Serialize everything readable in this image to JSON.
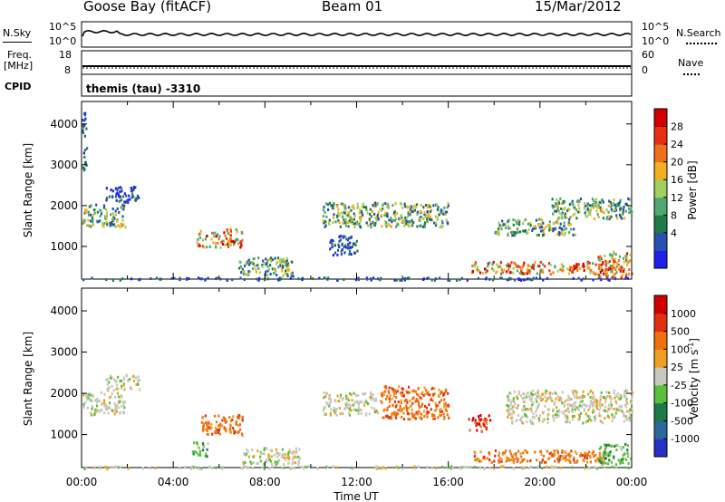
{
  "header": {
    "station": "Goose Bay (fitACF)",
    "beam": "Beam 01",
    "date": "15/Mar/2012"
  },
  "strips": {
    "nsky_label": "N.Sky",
    "nsearch_label": "N.Search",
    "nsky_ticks": [
      "10^5",
      "10^0"
    ],
    "nsearch_ticks": [
      "10^5",
      "10^0"
    ],
    "freq_label_1": "Freq.",
    "freq_label_2": "[MHz]",
    "freq_ticks": [
      "18",
      "8"
    ],
    "nave_label": "Nave",
    "nave_ticks": [
      "60",
      "0"
    ],
    "cpid_label": "CPID",
    "cpid_value": "themis (tau) -3310"
  },
  "chart_data": [
    {
      "type": "heatmap",
      "name": "power_panel",
      "ylabel": "Slant Range [km]",
      "ylim": [
        200,
        4550
      ],
      "xlim": [
        0,
        24
      ],
      "y_ticks": [
        "4000",
        "3000",
        "2000",
        "1000"
      ],
      "colorbar": {
        "label": "Power [dB]",
        "ticks": [
          "28",
          "24",
          "20",
          "16",
          "12",
          "8",
          "4"
        ],
        "colors": [
          "#2020e8",
          "#2850b0",
          "#1f7a4a",
          "#4ea870",
          "#9fd060",
          "#f0b020",
          "#f07018",
          "#e83010",
          "#d00000"
        ]
      },
      "regions": [
        {
          "t0": 0.0,
          "t1": 1.9,
          "r0": 1500,
          "r1": 2050,
          "level": "mid"
        },
        {
          "t0": 1.0,
          "t1": 2.5,
          "r0": 2100,
          "r1": 2500,
          "level": "low"
        },
        {
          "t0": 0.0,
          "t1": 0.2,
          "r0": 2900,
          "r1": 4300,
          "level": "low"
        },
        {
          "t0": 5.0,
          "t1": 7.0,
          "r0": 1000,
          "r1": 1450,
          "level": "high"
        },
        {
          "t0": 6.8,
          "t1": 9.2,
          "r0": 300,
          "r1": 750,
          "level": "mid"
        },
        {
          "t0": 10.5,
          "t1": 16.0,
          "r0": 1500,
          "r1": 2100,
          "level": "mid"
        },
        {
          "t0": 10.8,
          "t1": 12.0,
          "r0": 800,
          "r1": 1300,
          "level": "low"
        },
        {
          "t0": 17.0,
          "t1": 23.5,
          "r0": 350,
          "r1": 650,
          "level": "high"
        },
        {
          "t0": 18.0,
          "t1": 21.5,
          "r0": 1300,
          "r1": 1700,
          "level": "mid"
        },
        {
          "t0": 20.5,
          "t1": 24.0,
          "r0": 1700,
          "r1": 2200,
          "level": "mid"
        },
        {
          "t0": 22.5,
          "t1": 24.0,
          "r0": 250,
          "r1": 900,
          "level": "high"
        },
        {
          "t0": 0.0,
          "t1": 24.0,
          "r0": 200,
          "r1": 260,
          "level": "low"
        }
      ]
    },
    {
      "type": "heatmap",
      "name": "velocity_panel",
      "ylabel": "Slant Range [km]",
      "xlabel": "Time UT",
      "ylim": [
        200,
        4550
      ],
      "xlim": [
        0,
        24
      ],
      "y_ticks": [
        "4000",
        "3000",
        "2000",
        "1000"
      ],
      "x_ticks": [
        "00:00",
        "04:00",
        "08:00",
        "12:00",
        "16:00",
        "20:00",
        "00:00"
      ],
      "colorbar": {
        "label": "Velocity [m s",
        "label_sup": "-1",
        "label_end": "]",
        "ticks": [
          "1000",
          "500",
          "100",
          "25",
          "-25",
          "-100",
          "-500",
          "-1000"
        ],
        "colors": [
          "#2830c8",
          "#2a6a9a",
          "#1f7a4a",
          "#5cbf3a",
          "#c8c8c0",
          "#f0a020",
          "#f07010",
          "#e03010",
          "#d00000"
        ]
      },
      "regions": [
        {
          "t0": 0.0,
          "t1": 1.9,
          "r0": 1500,
          "r1": 2050,
          "level": "gray"
        },
        {
          "t0": 1.0,
          "t1": 2.5,
          "r0": 2100,
          "r1": 2500,
          "level": "gray"
        },
        {
          "t0": 5.2,
          "t1": 7.0,
          "r0": 1000,
          "r1": 1500,
          "level": "orange"
        },
        {
          "t0": 4.8,
          "t1": 5.5,
          "r0": 500,
          "r1": 900,
          "level": "green"
        },
        {
          "t0": 7.0,
          "t1": 9.5,
          "r0": 300,
          "r1": 700,
          "level": "gray"
        },
        {
          "t0": 10.5,
          "t1": 13.0,
          "r0": 1500,
          "r1": 2050,
          "level": "gray"
        },
        {
          "t0": 13.0,
          "t1": 16.0,
          "r0": 1400,
          "r1": 2200,
          "level": "orange"
        },
        {
          "t0": 16.8,
          "t1": 17.8,
          "r0": 1100,
          "r1": 1500,
          "level": "red"
        },
        {
          "t0": 17.0,
          "t1": 23.0,
          "r0": 350,
          "r1": 650,
          "level": "orange"
        },
        {
          "t0": 18.5,
          "t1": 24.0,
          "r0": 1300,
          "r1": 2100,
          "level": "gray"
        },
        {
          "t0": 22.5,
          "t1": 24.0,
          "r0": 300,
          "r1": 800,
          "level": "green"
        },
        {
          "t0": 0.0,
          "t1": 24.0,
          "r0": 200,
          "r1": 260,
          "level": "gray"
        }
      ]
    }
  ]
}
